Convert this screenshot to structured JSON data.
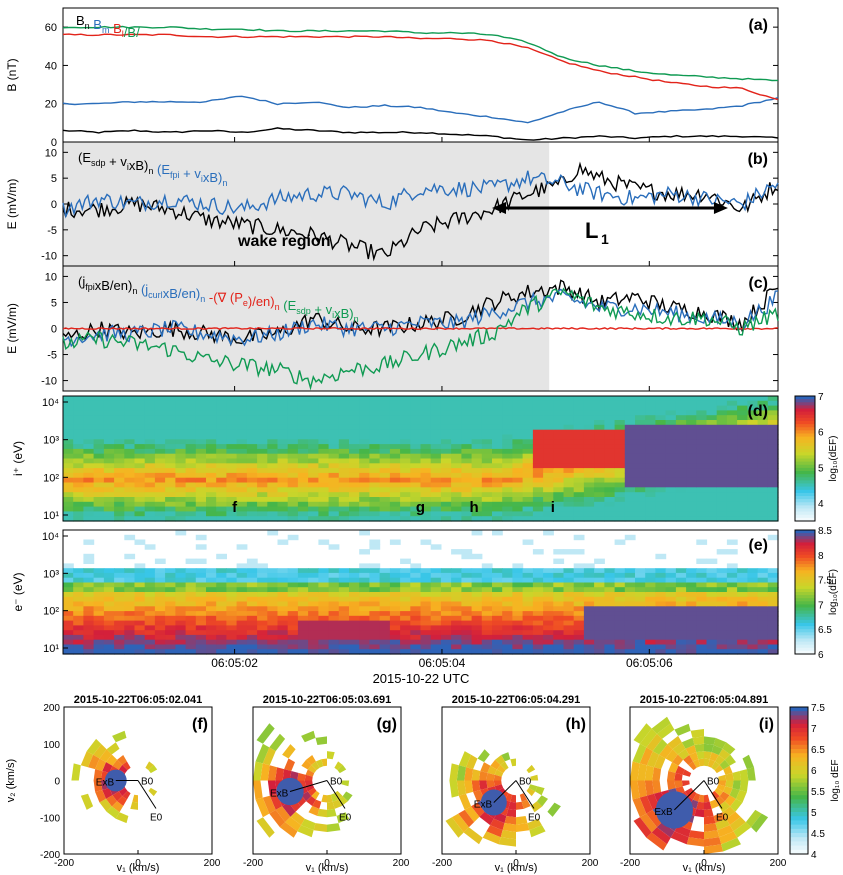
{
  "figure": {
    "date_label": "2015-10-22 UTC",
    "time_ticks": [
      "06:05:02",
      "06:05:04",
      "06:05:06"
    ],
    "colors": {
      "black": "#000000",
      "blue": "#2a6ebb",
      "red": "#e2231a",
      "green": "#0f9a52",
      "wake_shading": "#e5e5e5"
    }
  },
  "chart_data": [
    {
      "type": "line",
      "panel": "(a)",
      "ylabel": "B (nT)",
      "ylim": [
        0,
        70
      ],
      "yticks": [
        "0",
        "20",
        "40",
        "60"
      ],
      "legend": [
        {
          "text": "B",
          "sub": "n",
          "color": "#000000"
        },
        {
          "text": " B",
          "sub": "m",
          "color": "#2a6ebb"
        },
        {
          "text": " B",
          "sub": "l",
          "color": "#e2231a"
        },
        {
          "text": "/B/",
          "sub": "",
          "color": "#0f9a52"
        }
      ],
      "x": [
        0,
        0.05,
        0.1,
        0.15,
        0.2,
        0.25,
        0.3,
        0.35,
        0.4,
        0.45,
        0.5,
        0.55,
        0.6,
        0.65,
        0.7,
        0.75,
        0.8,
        0.85,
        0.9,
        0.95,
        1.0
      ],
      "series": [
        {
          "name": "B_n",
          "color": "#000000",
          "values": [
            6,
            5,
            6,
            5,
            6,
            5,
            7,
            6,
            5,
            5,
            5,
            4,
            3,
            1,
            2,
            3,
            2,
            3,
            3,
            3,
            2
          ]
        },
        {
          "name": "B_m",
          "color": "#2a6ebb",
          "values": [
            20,
            20,
            21,
            21,
            21,
            24,
            20,
            21,
            18,
            19,
            18,
            15,
            13,
            10,
            16,
            21,
            15,
            16,
            17,
            19,
            23
          ]
        },
        {
          "name": "B_l",
          "color": "#e2231a",
          "values": [
            56,
            56,
            56,
            56,
            55,
            55,
            55,
            55,
            55,
            55,
            54,
            54,
            53,
            49,
            42,
            37,
            34,
            31,
            29,
            28,
            22
          ]
        },
        {
          "name": "/B/",
          "color": "#0f9a52",
          "values": [
            60,
            60,
            60,
            60,
            59,
            59,
            58,
            58,
            58,
            58,
            57,
            57,
            56,
            52,
            44,
            40,
            37,
            35,
            34,
            33,
            32
          ]
        }
      ]
    },
    {
      "type": "line",
      "panel": "(b)",
      "ylabel": "E (mV/m)",
      "ylim": [
        -12,
        12
      ],
      "yticks": [
        "-10",
        "-5",
        "0",
        "5",
        "10"
      ],
      "wake_end": 0.68,
      "legend": [
        {
          "text": "(E",
          "sub": "sdp",
          "tail": " + v",
          "sub2": "i",
          "tail2": "xB)",
          "sub3": "n",
          "color": "#000000"
        },
        {
          "text": "(E",
          "sub": "fpi",
          "tail": " + v",
          "sub2": "i",
          "tail2": "xB)",
          "sub3": "n",
          "color": "#2a6ebb"
        }
      ],
      "annotations": {
        "wake": "wake region",
        "L": "L",
        "L_sub": "1",
        "arrow_from": 0.6,
        "arrow_to": 0.93,
        "arrow_y": 0
      },
      "x": [
        0,
        0.05,
        0.1,
        0.15,
        0.2,
        0.25,
        0.3,
        0.35,
        0.4,
        0.45,
        0.5,
        0.55,
        0.6,
        0.65,
        0.7,
        0.72,
        0.75,
        0.8,
        0.85,
        0.9,
        0.95,
        1.0
      ],
      "series": [
        {
          "name": "E_sdp + v_i x B",
          "color": "#000000",
          "values": [
            -1,
            -1,
            0,
            -1,
            -3,
            -4,
            -5,
            -6,
            -8,
            -10,
            -5,
            -3,
            -1,
            2,
            4,
            7,
            5,
            3,
            2,
            2,
            -1,
            4
          ]
        },
        {
          "name": "E_fpi + v_i x B",
          "color": "#2a6ebb",
          "values": [
            -1,
            1,
            0,
            1,
            0,
            -1,
            1,
            2,
            2,
            0,
            3,
            3,
            3,
            5,
            4,
            3,
            2,
            1,
            2,
            1,
            0,
            4
          ]
        }
      ]
    },
    {
      "type": "line",
      "panel": "(c)",
      "ylabel": "E (mV/m)",
      "ylim": [
        -12,
        12
      ],
      "yticks": [
        "-10",
        "-5",
        "0",
        "5",
        "10"
      ],
      "wake_end": 0.68,
      "legend": [
        {
          "text": "(j",
          "sub": "fpi",
          "tail": "xB/en)",
          "sub2": "n",
          "color": "#000000"
        },
        {
          "text": "(j",
          "sub": "curl",
          "tail": "xB/en)",
          "sub2": "n",
          "color": "#2a6ebb"
        },
        {
          "text": "-(∇ (P",
          "sub": "e",
          "tail": ")/en)",
          "sub2": "n",
          "color": "#e2231a"
        },
        {
          "text": "(E",
          "sub": "sdp",
          "tail": " + v",
          "sub2": "i",
          "tail2": "xB)",
          "sub3": "n",
          "color": "#0f9a52"
        }
      ],
      "x": [
        0,
        0.05,
        0.1,
        0.15,
        0.2,
        0.25,
        0.3,
        0.35,
        0.4,
        0.45,
        0.5,
        0.55,
        0.6,
        0.65,
        0.7,
        0.75,
        0.8,
        0.85,
        0.9,
        0.95,
        1.0
      ],
      "series": [
        {
          "name": "j_fpi x B / en",
          "color": "#000000",
          "values": [
            -2,
            0,
            -1,
            0,
            -1,
            -2,
            -1,
            2,
            0,
            0,
            1,
            2,
            5,
            7,
            8,
            5,
            6,
            4,
            3,
            1,
            8
          ]
        },
        {
          "name": "j_curl x B / en",
          "color": "#2a6ebb",
          "values": [
            -2,
            -1,
            -1,
            0,
            -1,
            -2,
            -1,
            1,
            0,
            0,
            1,
            1,
            3,
            5,
            6,
            4,
            4,
            3,
            2,
            1,
            6
          ]
        },
        {
          "name": "-(grad Pe)/en",
          "color": "#e2231a",
          "values": [
            0,
            0,
            0,
            0,
            0,
            0,
            0,
            0,
            0,
            0,
            0,
            0,
            0,
            0,
            0,
            0,
            0,
            0,
            0,
            0,
            0
          ]
        },
        {
          "name": "E_sdp + v_i x B",
          "color": "#0f9a52",
          "values": [
            -3,
            -2,
            -3,
            -4,
            -6,
            -7,
            -8,
            -10,
            -8,
            -7,
            -5,
            -3,
            -1,
            4,
            7,
            4,
            3,
            2,
            2,
            0,
            3
          ]
        }
      ]
    },
    {
      "type": "heatmap",
      "panel": "(d)",
      "ylabel": "i⁺ (eV)",
      "ytick_labels": [
        "10¹",
        "10²",
        "10³",
        "10⁴"
      ],
      "colorbar": {
        "label": "log₁₀(dEF)",
        "ticks": [
          "4",
          "5",
          "6",
          "7"
        ],
        "range": [
          3.5,
          7
        ]
      },
      "time_markers": [
        "f",
        "g",
        "h",
        "i"
      ],
      "time_marker_x": [
        0.24,
        0.5,
        0.575,
        0.685
      ]
    },
    {
      "type": "heatmap",
      "panel": "(e)",
      "ylabel": "e⁻ (eV)",
      "ytick_labels": [
        "10¹",
        "10²",
        "10³",
        "10⁴"
      ],
      "colorbar": {
        "label": "log₁₀(dEF)",
        "ticks": [
          "6",
          "6.5",
          "7",
          "7.5",
          "8",
          "8.5"
        ],
        "range": [
          6,
          8.5
        ]
      }
    },
    {
      "type": "heatmap",
      "panel": "(f)",
      "title": "2015-10-22T06:05:02.041",
      "xlabel": "v₁ (km/s)",
      "ylabel": "v₂ (km/s)",
      "xlim": [
        -200,
        200
      ],
      "ylim": [
        -200,
        200
      ],
      "ticks": [
        "-200",
        "0",
        "200"
      ],
      "yticks": [
        "200",
        "100",
        "0",
        "-100",
        "-200"
      ],
      "markers": [
        "ExB",
        "B0",
        "E0"
      ]
    },
    {
      "type": "heatmap",
      "panel": "(g)",
      "title": "2015-10-22T06:05:03.691",
      "xlabel": "v₁ (km/s)",
      "xlim": [
        -200,
        200
      ],
      "ylim": [
        -200,
        200
      ],
      "ticks": [
        "-200",
        "0",
        "200"
      ],
      "markers": [
        "ExB",
        "B0",
        "E0"
      ]
    },
    {
      "type": "heatmap",
      "panel": "(h)",
      "title": "2015-10-22T06:05:04.291",
      "xlabel": "v₁ (km/s)",
      "xlim": [
        -200,
        200
      ],
      "ylim": [
        -200,
        200
      ],
      "ticks": [
        "-200",
        "0",
        "200"
      ],
      "markers": [
        "ExB",
        "B0",
        "E0"
      ]
    },
    {
      "type": "heatmap",
      "panel": "(i)",
      "title": "2015-10-22T06:05:04.891",
      "xlabel": "v₁ (km/s)",
      "xlim": [
        -200,
        200
      ],
      "ylim": [
        -200,
        200
      ],
      "ticks": [
        "-200",
        "0",
        "200"
      ],
      "markers": [
        "ExB",
        "B0",
        "E0"
      ],
      "colorbar": {
        "label": "log₁₀ dEF",
        "ticks": [
          "4",
          "4.5",
          "5",
          "5.5",
          "6",
          "6.5",
          "7",
          "7.5"
        ],
        "range": [
          4,
          7.5
        ]
      }
    }
  ]
}
